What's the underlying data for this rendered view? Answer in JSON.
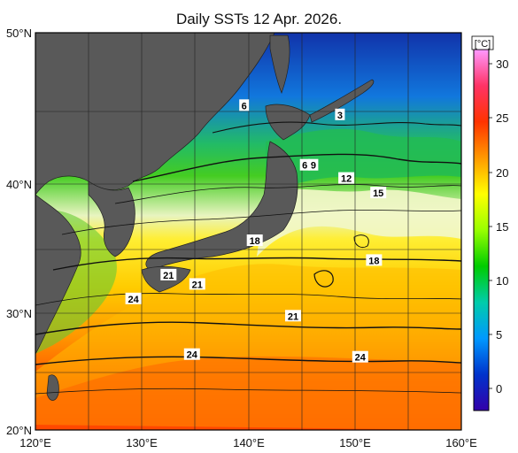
{
  "title": "Daily SSTs 12 Apr. 2026.",
  "colorbar": {
    "unit": "[°C]",
    "ticks": [
      "30",
      "25",
      "20",
      "15",
      "10",
      "5",
      "0"
    ],
    "stops": [
      "#ff99ff",
      "#ff3366",
      "#ff3300",
      "#ff9900",
      "#ffff00",
      "#99ff00",
      "#00cc00",
      "#00ccaa",
      "#0099ff",
      "#0033cc",
      "#3300aa"
    ]
  },
  "axes": {
    "x_ticks": [
      "120°E",
      "130°E",
      "140°E",
      "150°E",
      "160°E"
    ],
    "y_ticks": [
      "50°N",
      "40°N",
      "30°N",
      "20°N"
    ],
    "lon_range": [
      120,
      160
    ],
    "lat_range": [
      20,
      50
    ]
  },
  "contour_labels": [
    {
      "text": "6",
      "lon": 139.6,
      "lat": 44.5
    },
    {
      "text": "3",
      "lon": 148.6,
      "lat": 43.8
    },
    {
      "text": "6",
      "lon": 145.3,
      "lat": 40.0
    },
    {
      "text": "9",
      "lon": 146.1,
      "lat": 40.0
    },
    {
      "text": "12",
      "lon": 149.2,
      "lat": 39.0
    },
    {
      "text": "15",
      "lon": 152.2,
      "lat": 37.9
    },
    {
      "text": "18",
      "lon": 140.6,
      "lat": 34.3
    },
    {
      "text": "18",
      "lon": 151.8,
      "lat": 32.8
    },
    {
      "text": "21",
      "lon": 132.5,
      "lat": 31.7
    },
    {
      "text": "21",
      "lon": 135.2,
      "lat": 31.0
    },
    {
      "text": "24",
      "lon": 129.2,
      "lat": 29.9
    },
    {
      "text": "21",
      "lon": 144.2,
      "lat": 28.6
    },
    {
      "text": "24",
      "lon": 134.7,
      "lat": 25.7
    },
    {
      "text": "24",
      "lon": 150.5,
      "lat": 25.5
    }
  ]
}
